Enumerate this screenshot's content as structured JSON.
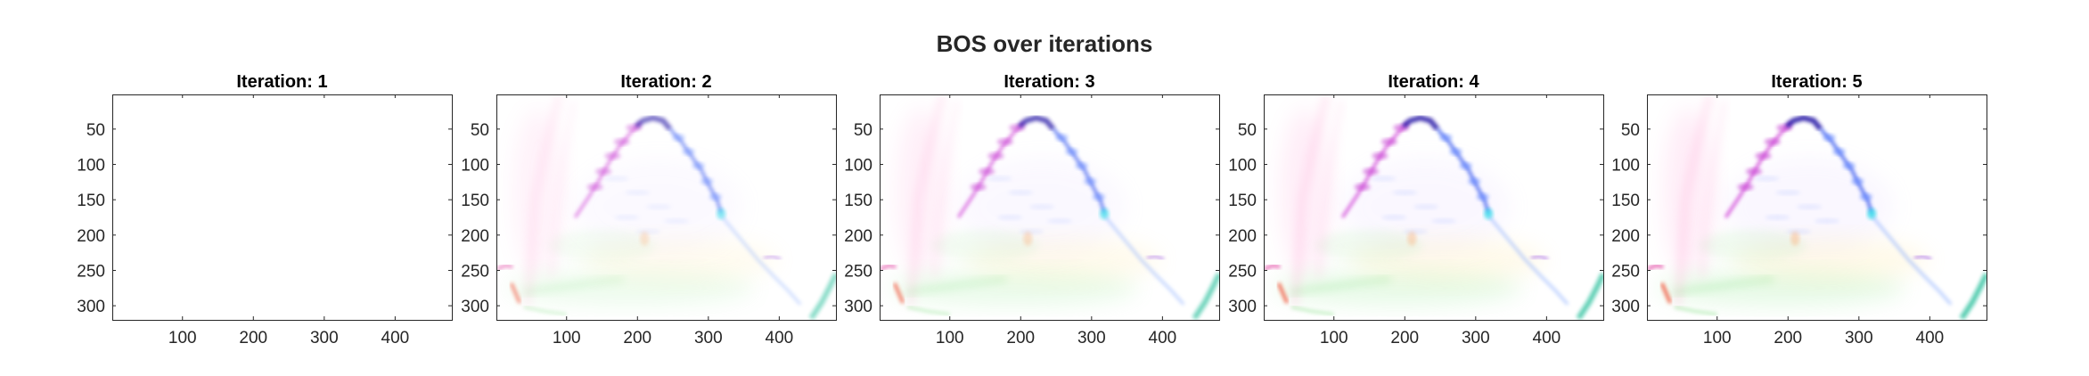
{
  "figure": {
    "title": "BOS over iterations"
  },
  "chart_data": [
    {
      "type": "heatmap",
      "title": "Iteration: 1",
      "xlim": [
        1,
        480
      ],
      "ylim": [
        1,
        320
      ],
      "y_reversed": true,
      "xticks": [
        100,
        200,
        300,
        400
      ],
      "yticks": [
        50,
        100,
        150,
        200,
        250,
        300
      ],
      "intensity": 0.0
    },
    {
      "type": "heatmap",
      "title": "Iteration: 2",
      "xlim": [
        1,
        480
      ],
      "ylim": [
        1,
        320
      ],
      "y_reversed": true,
      "xticks": [
        100,
        200,
        300,
        400
      ],
      "yticks": [
        50,
        100,
        150,
        200,
        250,
        300
      ],
      "intensity": 0.7
    },
    {
      "type": "heatmap",
      "title": "Iteration: 3",
      "xlim": [
        1,
        480
      ],
      "ylim": [
        1,
        320
      ],
      "y_reversed": true,
      "xticks": [
        100,
        200,
        300,
        400
      ],
      "yticks": [
        50,
        100,
        150,
        200,
        250,
        300
      ],
      "intensity": 0.85
    },
    {
      "type": "heatmap",
      "title": "Iteration: 4",
      "xlim": [
        1,
        480
      ],
      "ylim": [
        1,
        320
      ],
      "y_reversed": true,
      "xticks": [
        100,
        200,
        300,
        400
      ],
      "yticks": [
        50,
        100,
        150,
        200,
        250,
        300
      ],
      "intensity": 0.95
    },
    {
      "type": "heatmap",
      "title": "Iteration: 5",
      "xlim": [
        1,
        480
      ],
      "ylim": [
        1,
        320
      ],
      "y_reversed": true,
      "xticks": [
        100,
        200,
        300,
        400
      ],
      "yticks": [
        50,
        100,
        150,
        200,
        250,
        300
      ],
      "intensity": 1.0
    }
  ]
}
